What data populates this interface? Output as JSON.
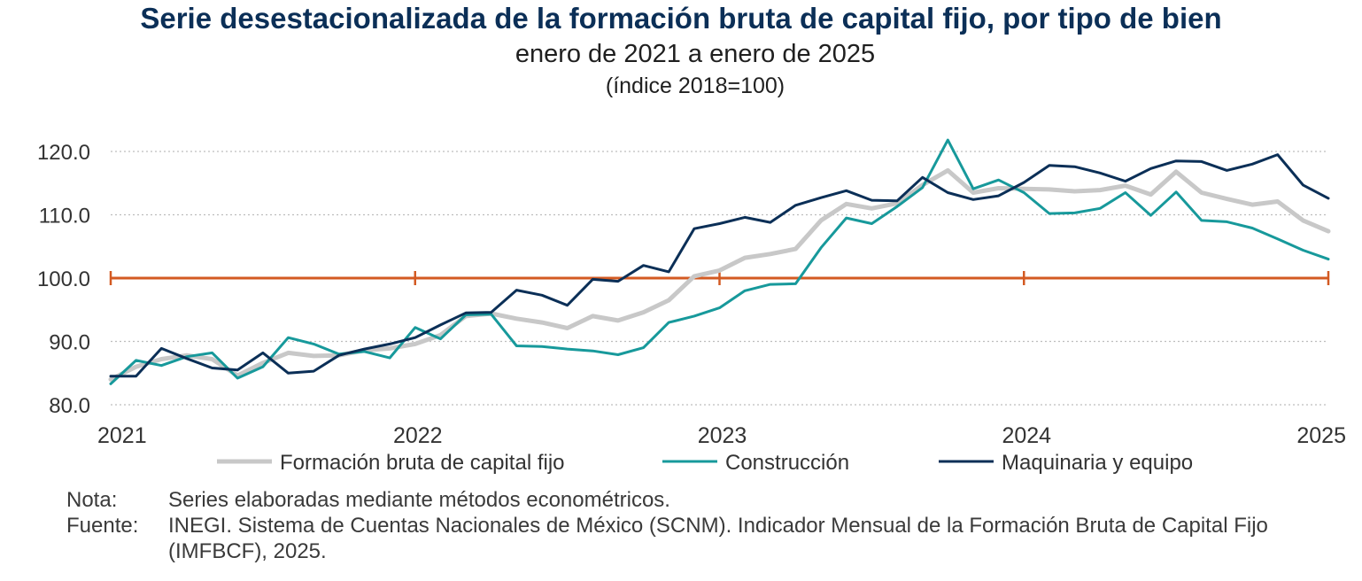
{
  "title": "Serie desestacionalizada de la formación bruta de capital fijo, por tipo de bien",
  "subtitle": "enero de 2021 a enero de 2025",
  "unit_label": "(índice 2018=100)",
  "notes": [
    {
      "key": "Nota:",
      "text": "Series elaboradas mediante métodos econométricos."
    },
    {
      "key": "Fuente:",
      "text": "INEGI. Sistema de Cuentas Nacionales de México (SCNM). Indicador Mensual de la Formación Bruta de Capital Fijo (IMFBCF), 2025."
    }
  ],
  "colors": {
    "formacion": "#c8c8c8",
    "construccion": "#17999b",
    "maquinaria": "#0b2f57",
    "reference": "#d35a22",
    "grid": "#bdbdbd",
    "axis_text": "#333333"
  },
  "chart_data": {
    "type": "line",
    "x_start": "2021-01",
    "x_end": "2025-01",
    "x_ticks": [
      "2021",
      "2022",
      "2023",
      "2024",
      "2025"
    ],
    "y_ticks": [
      "80.0",
      "90.0",
      "100.0",
      "110.0",
      "120.0"
    ],
    "ylim": [
      80,
      120
    ],
    "reference_line": 100,
    "grid": "horizontal dotted",
    "legend_position": "bottom",
    "series": [
      {
        "name": "Formación bruta de capital fijo",
        "key": "formacion",
        "values": [
          84.0,
          86.0,
          87.2,
          87.8,
          87.2,
          84.6,
          86.6,
          88.2,
          87.7,
          87.8,
          88.6,
          88.9,
          89.6,
          91.0,
          94.0,
          94.4,
          93.6,
          93.0,
          92.1,
          94.0,
          93.3,
          94.6,
          96.5,
          100.3,
          101.2,
          103.2,
          103.8,
          104.6,
          109.1,
          111.7,
          111.0,
          111.8,
          114.7,
          117.0,
          113.5,
          114.2,
          114.1,
          114.0,
          113.7,
          113.9,
          114.6,
          113.2,
          116.8,
          113.5,
          112.5,
          111.6,
          112.1,
          109.1,
          107.4
        ]
      },
      {
        "name": "Construcción",
        "key": "construccion",
        "values": [
          83.3,
          87.0,
          86.2,
          87.6,
          88.2,
          84.2,
          86.0,
          90.6,
          89.6,
          88.0,
          88.4,
          87.4,
          92.2,
          90.4,
          94.2,
          94.3,
          89.3,
          89.2,
          88.8,
          88.5,
          87.9,
          89.0,
          93.0,
          94.0,
          95.3,
          98.0,
          99.0,
          99.1,
          104.8,
          109.5,
          108.6,
          111.3,
          114.3,
          121.8,
          114.1,
          115.5,
          113.5,
          110.2,
          110.3,
          111.0,
          113.5,
          109.9,
          113.6,
          109.1,
          108.9,
          107.9,
          106.2,
          104.4,
          103.0
        ]
      },
      {
        "name": "Maquinaria y equipo",
        "key": "maquinaria",
        "values": [
          84.5,
          84.5,
          88.9,
          87.3,
          85.8,
          85.5,
          88.2,
          85.0,
          85.3,
          87.8,
          88.8,
          89.6,
          90.6,
          92.6,
          94.5,
          94.6,
          98.1,
          97.3,
          95.7,
          99.8,
          99.5,
          102.0,
          101.0,
          107.8,
          108.6,
          109.6,
          108.8,
          111.5,
          112.7,
          113.8,
          112.3,
          112.2,
          115.9,
          113.5,
          112.4,
          113.0,
          115.1,
          117.8,
          117.6,
          116.6,
          115.3,
          117.3,
          118.5,
          118.4,
          117.0,
          118.0,
          119.5,
          114.7,
          112.6
        ]
      }
    ]
  }
}
